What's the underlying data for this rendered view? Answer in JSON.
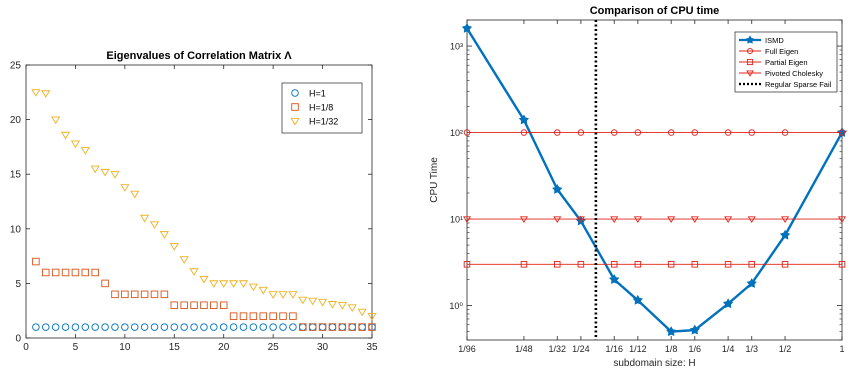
{
  "chart_data": [
    {
      "type": "scatter",
      "title": "Eigenvalues of Correlation Matrix Λ",
      "xlabel": "",
      "ylabel": "",
      "xlim": [
        0,
        35
      ],
      "ylim": [
        0,
        25
      ],
      "xticks": [
        "0",
        "5",
        "10",
        "15",
        "20",
        "25",
        "30",
        "35"
      ],
      "yticks": [
        "0",
        "5",
        "10",
        "15",
        "20",
        "25"
      ],
      "legend_position": "top-right",
      "grid": false,
      "series": [
        {
          "name": "H=1",
          "marker": "circle",
          "color": "#0072BD",
          "x": [
            1,
            2,
            3,
            4,
            5,
            6,
            7,
            8,
            9,
            10,
            11,
            12,
            13,
            14,
            15,
            16,
            17,
            18,
            19,
            20,
            21,
            22,
            23,
            24,
            25,
            26,
            27,
            28,
            29,
            30,
            31,
            32,
            33,
            34,
            35
          ],
          "values": [
            1,
            1,
            1,
            1,
            1,
            1,
            1,
            1,
            1,
            1,
            1,
            1,
            1,
            1,
            1,
            1,
            1,
            1,
            1,
            1,
            1,
            1,
            1,
            1,
            1,
            1,
            1,
            1,
            1,
            1,
            1,
            1,
            1,
            1,
            1
          ]
        },
        {
          "name": "H=1/8",
          "marker": "square",
          "color": "#D95319",
          "x": [
            1,
            2,
            3,
            4,
            5,
            6,
            7,
            8,
            9,
            10,
            11,
            12,
            13,
            14,
            15,
            16,
            17,
            18,
            19,
            20,
            21,
            22,
            23,
            24,
            25,
            26,
            27,
            28,
            29,
            30,
            31,
            32,
            33,
            34,
            35
          ],
          "values": [
            7,
            6,
            6,
            6,
            6,
            6,
            6,
            5,
            4,
            4,
            4,
            4,
            4,
            4,
            3,
            3,
            3,
            3,
            3,
            3,
            2,
            2,
            2,
            2,
            2,
            2,
            2,
            1,
            1,
            1,
            1,
            1,
            1,
            1,
            1
          ]
        },
        {
          "name": "H=1/32",
          "marker": "triangle-down",
          "color": "#EDB120",
          "x": [
            1,
            2,
            3,
            4,
            5,
            6,
            7,
            8,
            9,
            10,
            11,
            12,
            13,
            14,
            15,
            16,
            17,
            18,
            19,
            20,
            21,
            22,
            23,
            24,
            25,
            26,
            27,
            28,
            29,
            30,
            31,
            32,
            33,
            34,
            35
          ],
          "values": [
            22.5,
            22.4,
            20,
            18.6,
            17.8,
            17.2,
            15.5,
            15.2,
            15,
            13.8,
            13.2,
            11,
            10.4,
            9.5,
            8.4,
            7.2,
            6.1,
            5.4,
            5,
            5,
            5,
            5,
            4.7,
            4.4,
            4,
            4,
            4,
            3.5,
            3.4,
            3.3,
            3.1,
            3,
            2.8,
            2.4,
            2
          ]
        }
      ]
    },
    {
      "type": "line",
      "title": "Comparison of CPU time",
      "xlabel": "subdomain size: H",
      "ylabel": "CPU Time",
      "yscale": "log",
      "ylim": [
        0.4,
        2000
      ],
      "yticks": [
        "10⁰",
        "10¹",
        "10²",
        "10³"
      ],
      "x": [
        "1/96",
        "1/48",
        "1/32",
        "1/24",
        "1/16",
        "1/12",
        "1/8",
        "1/6",
        "1/4",
        "1/3",
        "1/2",
        "1"
      ],
      "legend_position": "top-right",
      "grid": false,
      "series": [
        {
          "name": "ISMD",
          "color": "#0072BD",
          "marker": "filled-star",
          "values": [
            1600,
            140,
            22,
            9.5,
            2.0,
            1.15,
            0.5,
            0.52,
            1.05,
            1.8,
            6.5,
            100
          ]
        },
        {
          "name": "Full Eigen",
          "color": "#E32219",
          "marker": "circle",
          "values": [
            100,
            100,
            100,
            100,
            100,
            100,
            100,
            100,
            100,
            100,
            100,
            100
          ]
        },
        {
          "name": "Partial Eigen",
          "color": "#E32219",
          "marker": "square",
          "values": [
            3,
            3,
            3,
            3,
            3,
            3,
            3,
            3,
            3,
            3,
            3,
            3
          ]
        },
        {
          "name": "Pivoted Cholesky",
          "color": "#E32219",
          "marker": "triangle-down",
          "values": [
            10,
            10,
            10,
            10,
            10,
            10,
            10,
            10,
            10,
            10,
            10,
            10
          ]
        },
        {
          "name": "Regular Sparse Fail",
          "color": "#000000",
          "style": "dotted-vertical",
          "x_value": "1/20"
        }
      ]
    }
  ]
}
